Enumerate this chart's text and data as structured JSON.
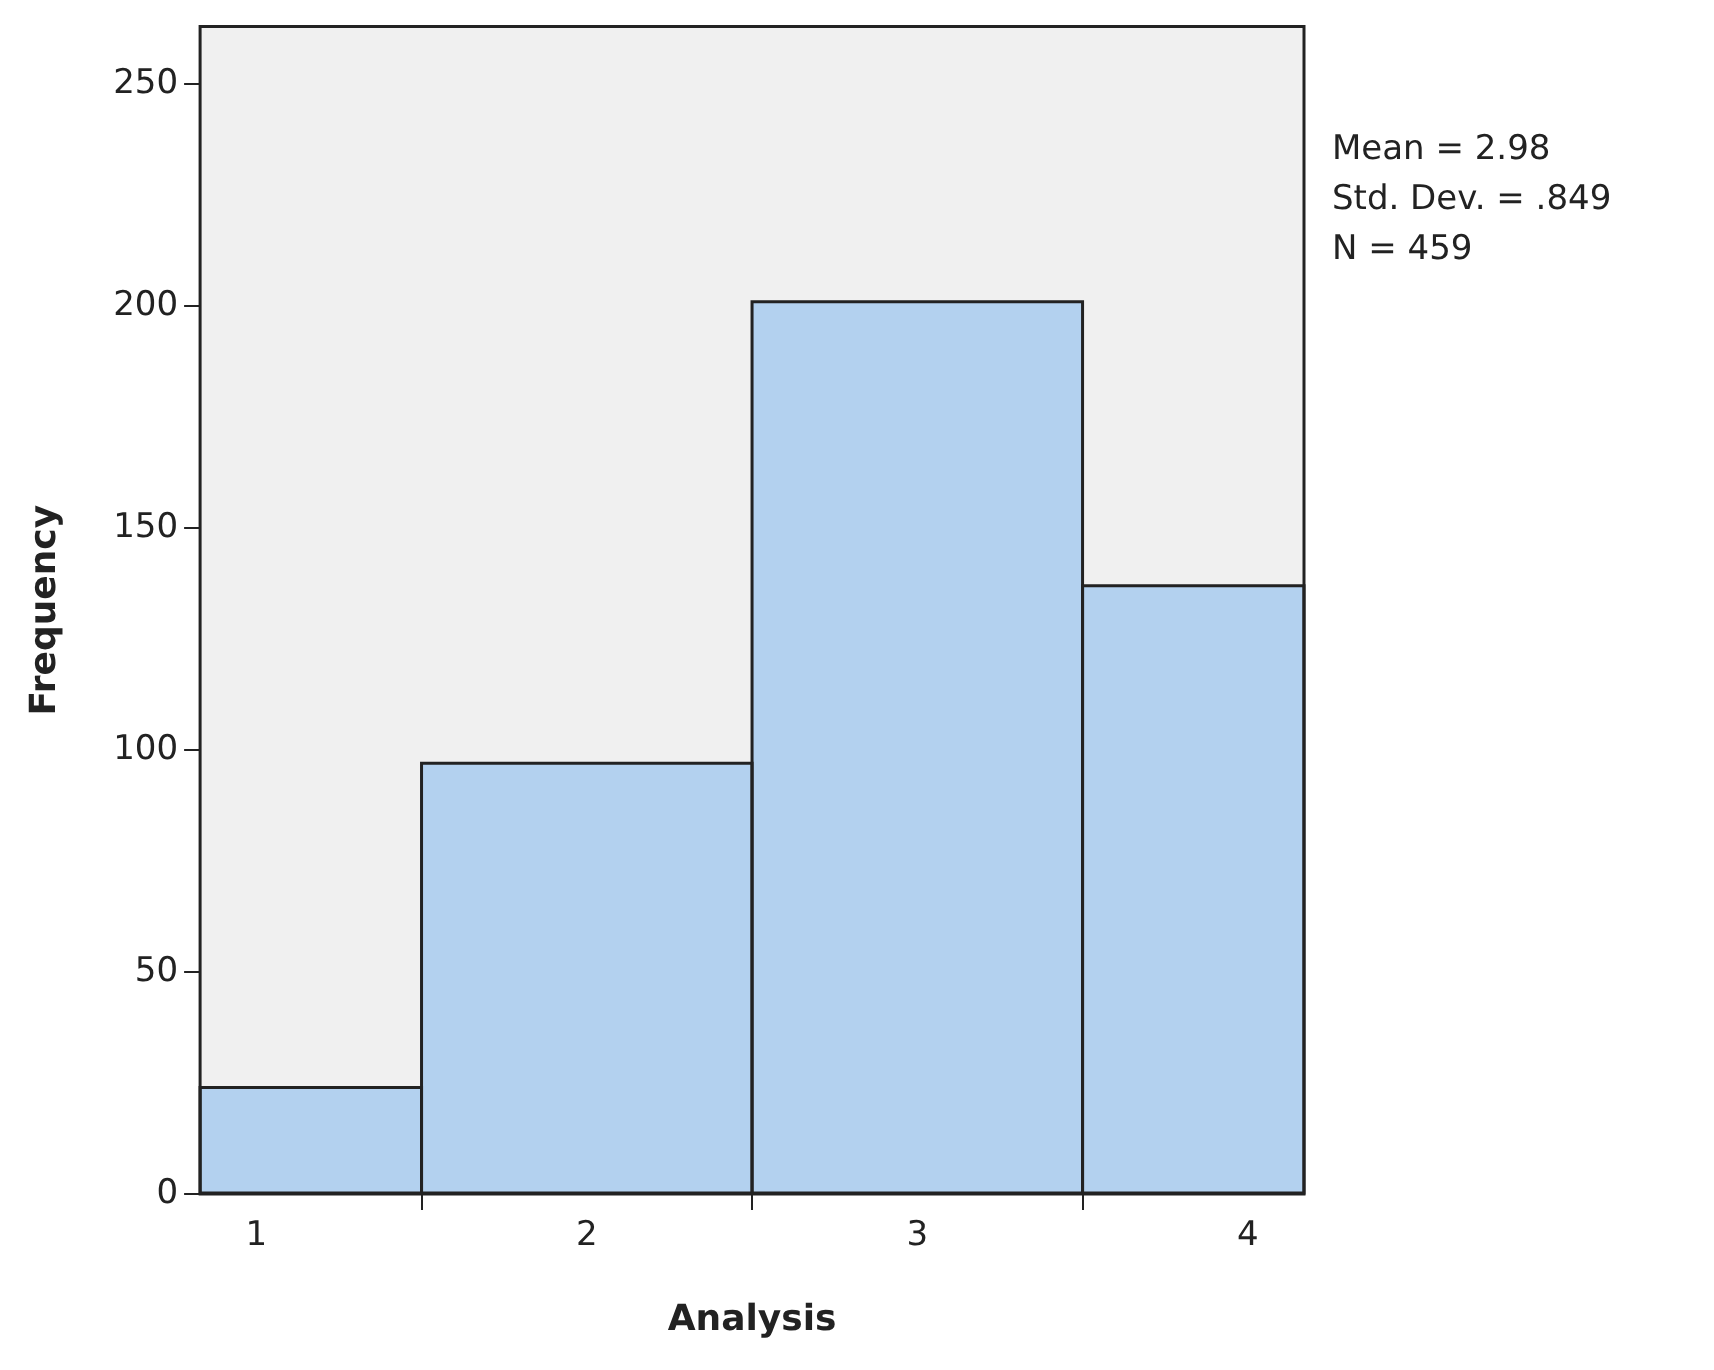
{
  "chart_data": {
    "type": "histogram",
    "xlabel": "Analysis",
    "ylabel": "Frequency",
    "bins": [
      0.83,
      1.5,
      2.5,
      3.5,
      4.17
    ],
    "values": [
      24,
      97,
      201,
      137
    ],
    "color": "#b3d1ef",
    "xlim": [
      0.83,
      4.17
    ],
    "xticks": [
      1,
      2,
      3,
      4
    ],
    "ylim": [
      0,
      263
    ],
    "yticks": [
      0,
      50,
      100,
      150,
      200,
      250
    ],
    "annotations": [
      "Mean = 2.98",
      "Std. Dev. = .849",
      "N = 459"
    ]
  }
}
